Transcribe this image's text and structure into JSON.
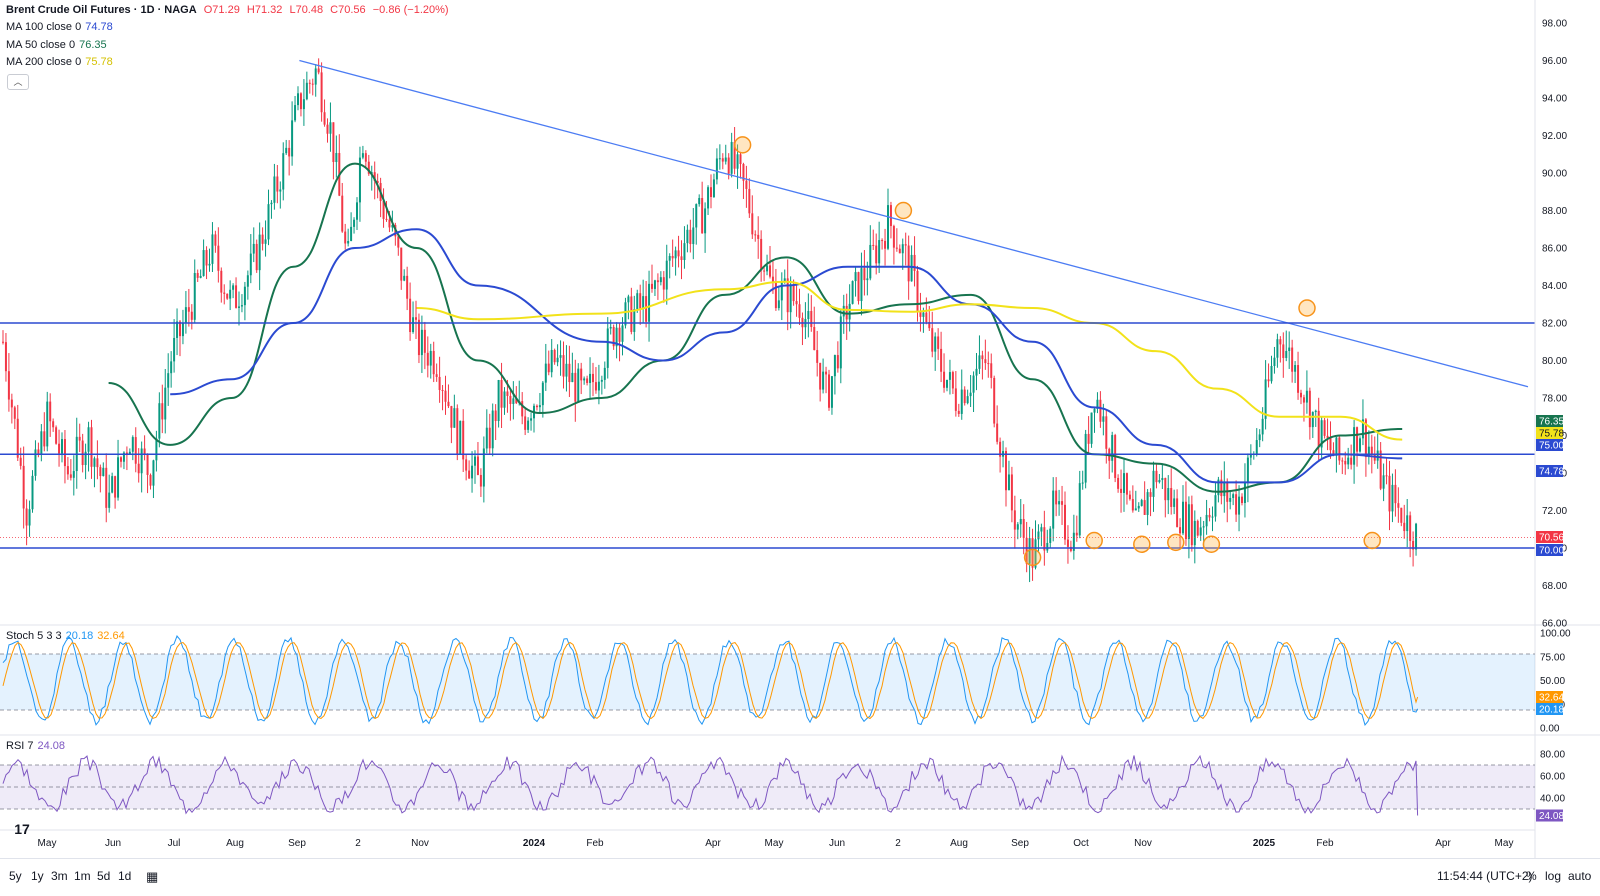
{
  "header": {
    "symbol": "Brent Crude Oil Futures · 1D · NAGA",
    "open": "O71.29",
    "high": "H71.32",
    "low": "L70.48",
    "close": "C70.56",
    "change": "−0.86 (−1.20%)"
  },
  "indicators": [
    {
      "label": "MA 100 close 0",
      "value": "74.78",
      "color": "#2b4ad1"
    },
    {
      "label": "MA 50 close 0",
      "value": "76.35",
      "color": "#17744f"
    },
    {
      "label": "MA 200 close 0",
      "value": "75.78",
      "color": "#f2e21a"
    }
  ],
  "stoch": {
    "label": "Stoch 5 3 3",
    "k": "20.18",
    "d": "32.64",
    "k_color": "#2196f3",
    "d_color": "#ff9800"
  },
  "rsi": {
    "label": "RSI 7",
    "value": "24.08",
    "color": "#7e57c2"
  },
  "bottom_bar": {
    "ranges": [
      "5y",
      "1y",
      "3m",
      "1m",
      "5d",
      "1d"
    ],
    "clock": "11:54:44 (UTC+2)",
    "options": [
      "%",
      "log",
      "auto"
    ]
  },
  "chart_data": {
    "type": "candlestick",
    "instrument": "Brent Crude Oil Futures",
    "interval": "1D",
    "price_axis": {
      "ticks": [
        66,
        68,
        70,
        72,
        74,
        76,
        78,
        80,
        82,
        84,
        86,
        88,
        90,
        92,
        94,
        96,
        98
      ],
      "tick_labels": [
        "66.00",
        "68.00",
        "70.00",
        "72.00",
        "74.00",
        "76.00",
        "78.00",
        "80.00",
        "82.00",
        "84.00",
        "86.00",
        "88.00",
        "90.00",
        "92.00",
        "94.00",
        "96.00",
        "98.00"
      ],
      "ylim": [
        66,
        99
      ]
    },
    "time_axis": {
      "labels": [
        "May",
        "Jun",
        "Jul",
        "Aug",
        "Sep",
        "2",
        "Nov",
        "2024",
        "Feb",
        "Apr",
        "May",
        "Jun",
        "2",
        "Aug",
        "Sep",
        "Oct",
        "Nov",
        "2025",
        "Feb",
        "Apr",
        "May"
      ]
    },
    "horizontal_levels": [
      {
        "value": 82.0,
        "label": "82.00"
      },
      {
        "value": 75.0,
        "label": "75.00"
      },
      {
        "value": 70.0,
        "label": "70.00"
      }
    ],
    "last_price": {
      "value": 70.56,
      "label": "70.56"
    },
    "axis_badges": [
      {
        "value": 76.35,
        "label": "76.35",
        "color": "#17744f"
      },
      {
        "value": 75.78,
        "label": "75.78",
        "color": "#f2e21a"
      },
      {
        "value": 75.0,
        "label": "75.00",
        "color": "#2b4ad1"
      },
      {
        "value": 74.78,
        "label": "74.78",
        "color": "#2b4ad1"
      },
      {
        "value": 70.56,
        "label": "70.56",
        "color": "#f23645"
      },
      {
        "value": 70.0,
        "label": "70.00",
        "color": "#2b4ad1"
      }
    ],
    "trendline": {
      "from": {
        "date": "Sep 2023",
        "price": 96.0
      },
      "to": {
        "date": "Apr 2025",
        "price": 78.6
      }
    },
    "highlighted_points": [
      {
        "date": "Apr 2024",
        "price": 91.5
      },
      {
        "date": "Jul 2024",
        "price": 88.0
      },
      {
        "date": "Sep 2024",
        "price": 69.5
      },
      {
        "date": "Oct 2024",
        "price": 70.4
      },
      {
        "date": "Nov 2024",
        "price": 70.2
      },
      {
        "date": "Nov 2024",
        "price": 70.3
      },
      {
        "date": "Dec 2024",
        "price": 70.2
      },
      {
        "date": "Jan 2025",
        "price": 82.8
      },
      {
        "date": "Mar 2025",
        "price": 70.4
      }
    ],
    "price_path": [
      [
        "Apr 2023",
        85.5
      ],
      [
        "Apr 2023",
        87
      ],
      [
        "Apr 2023",
        80
      ],
      [
        "May 2023",
        72
      ],
      [
        "May 2023",
        77
      ],
      [
        "May 2023",
        74
      ],
      [
        "Jun 2023",
        76
      ],
      [
        "Jun 2023",
        72.5
      ],
      [
        "Jun 2023",
        76
      ],
      [
        "Jul 2023",
        74
      ],
      [
        "Jul 2023",
        80
      ],
      [
        "Jul 2023",
        83
      ],
      [
        "Aug 2023",
        86
      ],
      [
        "Aug 2023",
        83
      ],
      [
        "Aug 2023",
        85
      ],
      [
        "Sep 2023",
        88
      ],
      [
        "Sep 2023",
        91
      ],
      [
        "Sep 2023",
        94
      ],
      [
        "Sep 2023",
        95.5
      ],
      [
        "Oct 2023",
        92
      ],
      [
        "Oct 2023",
        85
      ],
      [
        "Oct 2023",
        92
      ],
      [
        "Oct 2023",
        89
      ],
      [
        "Nov 2023",
        86
      ],
      [
        "Nov 2023",
        81
      ],
      [
        "Nov 2023",
        80
      ],
      [
        "Dec 2023",
        76
      ],
      [
        "Dec 2023",
        73.5
      ],
      [
        "Dec 2023",
        78
      ],
      [
        "Jan 2024",
        77
      ],
      [
        "Jan 2024",
        80
      ],
      [
        "Feb 2024",
        78
      ],
      [
        "Feb 2024",
        82
      ],
      [
        "Mar 2024",
        83
      ],
      [
        "Mar 2024",
        86
      ],
      [
        "Apr 2024",
        88
      ],
      [
        "Apr 2024",
        91.5
      ],
      [
        "Apr 2024",
        89
      ],
      [
        "May 2024",
        84
      ],
      [
        "May 2024",
        83
      ],
      [
        "Jun 2024",
        78
      ],
      [
        "Jun 2024",
        83
      ],
      [
        "Jun 2024",
        85
      ],
      [
        "Jul 2024",
        87.5
      ],
      [
        "Jul 2024",
        85
      ],
      [
        "Jul 2024",
        81
      ],
      [
        "Aug 2024",
        78
      ],
      [
        "Aug 2024",
        80
      ],
      [
        "Sep 2024",
        72
      ],
      [
        "Sep 2024",
        69.5
      ],
      [
        "Sep 2024",
        72
      ],
      [
        "Oct 2024",
        70.5
      ],
      [
        "Oct 2024",
        78.5
      ],
      [
        "Oct 2024",
        74.5
      ],
      [
        "Nov 2024",
        71
      ],
      [
        "Nov 2024",
        74
      ],
      [
        "Nov 2024",
        72
      ],
      [
        "Dec 2024",
        71
      ],
      [
        "Dec 2024",
        73
      ],
      [
        "Dec 2024",
        72.5
      ],
      [
        "Jan 2025",
        76
      ],
      [
        "Jan 2025",
        81.5
      ],
      [
        "Jan 2025",
        79
      ],
      [
        "Feb 2025",
        76
      ],
      [
        "Feb 2025",
        74.5
      ],
      [
        "Feb 2025",
        76.5
      ],
      [
        "Mar 2025",
        73
      ],
      [
        "Mar 2025",
        70.56
      ]
    ],
    "moving_averages": [
      {
        "name": "MA 50",
        "last": 76.35,
        "path": [
          [
            "Jun 2023",
            78.8
          ],
          [
            "Jul 2023",
            75.5
          ],
          [
            "Aug 2023",
            78
          ],
          [
            "Sep 2023",
            85
          ],
          [
            "Oct 2023",
            90.5
          ],
          [
            "Nov 2023",
            86
          ],
          [
            "Dec 2023",
            80
          ],
          [
            "Jan 2024",
            77.2
          ],
          [
            "Feb 2024",
            78
          ],
          [
            "Mar 2024",
            80
          ],
          [
            "Apr 2024",
            83.5
          ],
          [
            "May 2024",
            85.5
          ],
          [
            "Jun 2024",
            82.5
          ],
          [
            "Jul 2024",
            83
          ],
          [
            "Aug 2024",
            83.5
          ],
          [
            "Sep 2024",
            79
          ],
          [
            "Oct 2024",
            75
          ],
          [
            "Nov 2024",
            74.5
          ],
          [
            "Dec 2024",
            73
          ],
          [
            "Jan 2025",
            73.5
          ],
          [
            "Feb 2025",
            76
          ],
          [
            "Mar 2025",
            76.35
          ]
        ]
      },
      {
        "name": "MA 100",
        "last": 74.78,
        "path": [
          [
            "Jul 2023",
            78.2
          ],
          [
            "Aug 2023",
            79
          ],
          [
            "Sep 2023",
            82
          ],
          [
            "Oct 2023",
            86
          ],
          [
            "Nov 2023",
            87
          ],
          [
            "Dec 2023",
            84
          ],
          [
            "Feb 2024",
            81
          ],
          [
            "Mar 2024",
            80
          ],
          [
            "Apr 2024",
            81.5
          ],
          [
            "May 2024",
            84
          ],
          [
            "Jun 2024",
            85
          ],
          [
            "Jul 2024",
            85
          ],
          [
            "Aug 2024",
            83
          ],
          [
            "Sep 2024",
            81
          ],
          [
            "Oct 2024",
            77.5
          ],
          [
            "Nov 2024",
            75.5
          ],
          [
            "Dec 2024",
            73.5
          ],
          [
            "Jan 2025",
            73.5
          ],
          [
            "Feb 2025",
            75
          ],
          [
            "Mar 2025",
            74.78
          ]
        ]
      },
      {
        "name": "MA 200",
        "last": 75.78,
        "path": [
          [
            "Nov 2023",
            82.8
          ],
          [
            "Dec 2023",
            82.2
          ],
          [
            "Feb 2024",
            82.5
          ],
          [
            "Apr 2024",
            83.8
          ],
          [
            "May 2024",
            84.2
          ],
          [
            "Jun 2024",
            82.7
          ],
          [
            "Jul 2024",
            82.6
          ],
          [
            "Aug 2024",
            83
          ],
          [
            "Sep 2024",
            82.8
          ],
          [
            "Oct 2024",
            82
          ],
          [
            "Nov 2024",
            80.5
          ],
          [
            "Dec 2024",
            78.5
          ],
          [
            "Jan 2025",
            77
          ],
          [
            "Feb 2025",
            77
          ],
          [
            "Mar 2025",
            75.78
          ]
        ]
      }
    ],
    "stochastic": {
      "k": 20.18,
      "d": 32.64,
      "levels": [
        80,
        20
      ],
      "ticks": [
        "100.00",
        "75.00",
        "50.00",
        "25.00",
        "0.00"
      ]
    },
    "rsi": {
      "value": 24.08,
      "levels": [
        70,
        30
      ],
      "ticks": [
        "80.00",
        "60.00",
        "40.00"
      ]
    }
  }
}
